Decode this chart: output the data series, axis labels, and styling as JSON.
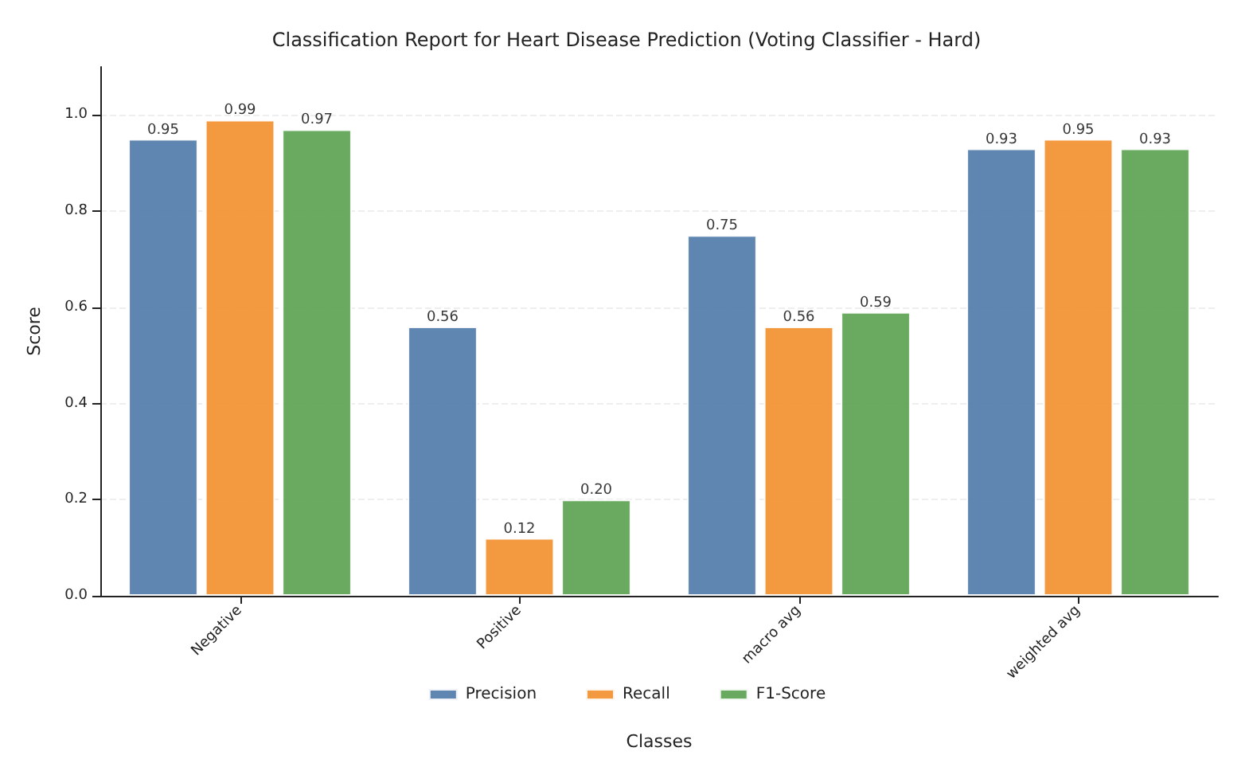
{
  "chart_data": {
    "type": "bar",
    "title": "Classification Report for Heart Disease Prediction (Voting Classifier - Hard)",
    "xlabel": "Classes",
    "ylabel": "Score",
    "categories": [
      "Negative",
      "Positive",
      "macro avg",
      "weighted avg"
    ],
    "series": [
      {
        "name": "Precision",
        "color": "#4e79a7",
        "values": [
          0.95,
          0.56,
          0.75,
          0.93
        ],
        "value_labels": [
          "0.95",
          "0.56",
          "0.75",
          "0.93"
        ]
      },
      {
        "name": "Recall",
        "color": "#f28e2b",
        "values": [
          0.99,
          0.12,
          0.56,
          0.95
        ],
        "value_labels": [
          "0.99",
          "0.12",
          "0.56",
          "0.95"
        ]
      },
      {
        "name": "F1-Score",
        "color": "#59a14f",
        "values": [
          0.97,
          0.2,
          0.59,
          0.93
        ],
        "value_labels": [
          "0.97",
          "0.20",
          "0.59",
          "0.93"
        ]
      }
    ],
    "ylim": [
      0,
      1.1
    ],
    "yticks": [
      {
        "value": 0,
        "label": "0.0"
      },
      0.2,
      0.4,
      0.6,
      0.8,
      {
        "value": 1,
        "label": "1.0"
      }
    ],
    "grid": "y",
    "legend": "bottom"
  }
}
